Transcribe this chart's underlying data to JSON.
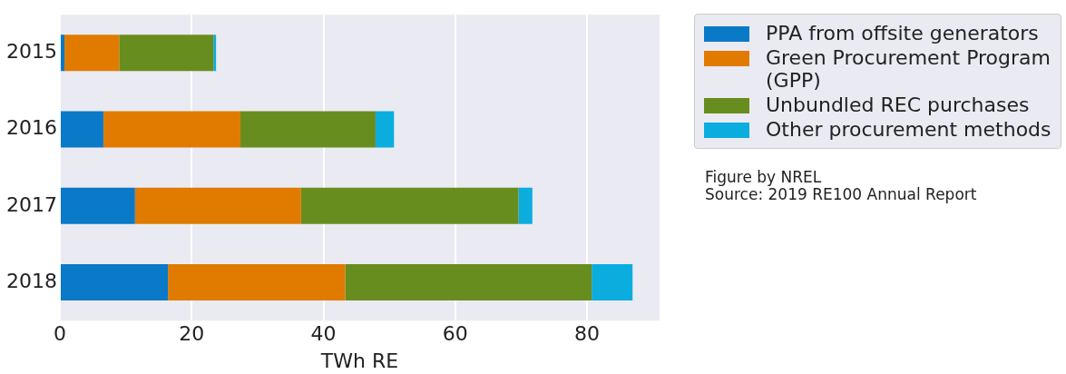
{
  "chart_data": {
    "type": "bar",
    "orientation": "horizontal",
    "stacked": true,
    "xlabel": "TWh RE",
    "categories": [
      "2015",
      "2016",
      "2017",
      "2018"
    ],
    "series": [
      {
        "name": "PPA from offsite generators",
        "color": "#0a79c7",
        "values": [
          0.7,
          6.6,
          11.4,
          16.4
        ]
      },
      {
        "name": "Green Procurement Program (GPP)",
        "color": "#e07b00",
        "values": [
          8.3,
          20.8,
          25.2,
          26.9
        ]
      },
      {
        "name": "Unbundled REC purchases",
        "color": "#688d1f",
        "values": [
          14.3,
          20.5,
          33.0,
          37.4
        ]
      },
      {
        "name": "Other procurement methods",
        "color": "#0badde",
        "values": [
          0.4,
          2.8,
          2.1,
          6.2
        ]
      }
    ],
    "xlim": [
      0,
      91
    ],
    "xticks": [
      0,
      20,
      40,
      60,
      80
    ],
    "grid": "x",
    "legend": "right",
    "annotations": [
      "Figure by NREL",
      "Source: 2019 RE100 Annual Report"
    ]
  }
}
